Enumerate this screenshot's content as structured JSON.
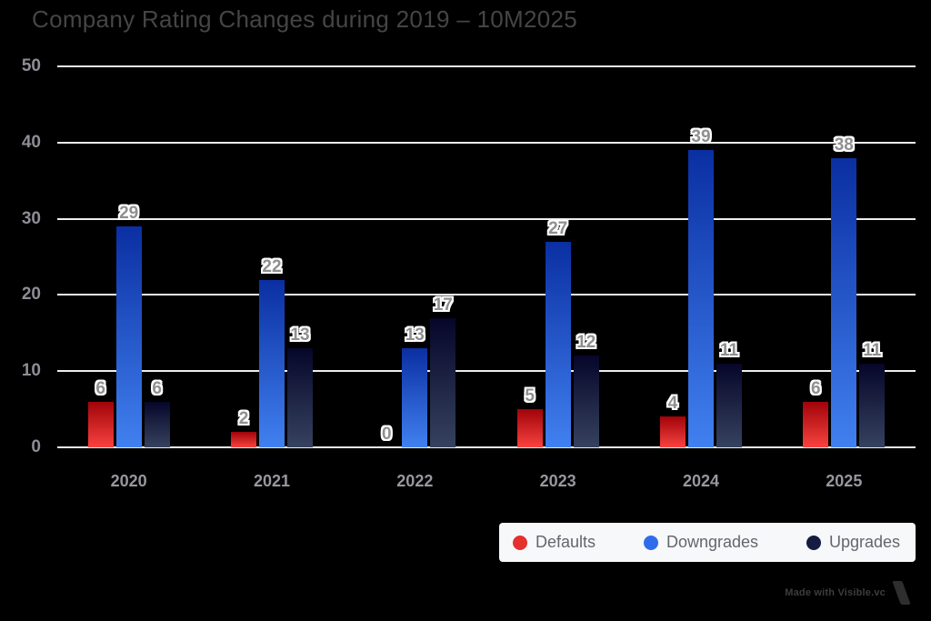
{
  "title": "Company Rating Changes during 2019 – 10M2025",
  "chart_data": {
    "type": "bar",
    "title": "Company Rating Changes during 2019 – 10M2025",
    "categories": [
      "2020",
      "2021",
      "2022",
      "2023",
      "2024",
      "2025"
    ],
    "series": [
      {
        "name": "Defaults",
        "values": [
          6,
          2,
          0,
          5,
          4,
          6
        ],
        "color_top": "#a00309",
        "color_bottom": "#f8423f",
        "legend_color": "#e5302e"
      },
      {
        "name": "Downgrades",
        "values": [
          29,
          22,
          13,
          27,
          39,
          38
        ],
        "color_top": "#0a2fa2",
        "color_bottom": "#4180f0",
        "legend_color": "#2f6ceb"
      },
      {
        "name": "Upgrades",
        "values": [
          6,
          13,
          17,
          12,
          11,
          11
        ],
        "color_top": "#06062a",
        "color_bottom": "#36425f",
        "legend_color": "#141d41"
      }
    ],
    "xlabel": "",
    "ylabel": "",
    "ylim": [
      0,
      50
    ],
    "yticks": [
      0,
      10,
      20,
      30,
      40,
      50
    ],
    "grid": "horizontal",
    "show_value_labels": true,
    "legend_position": "bottom-right",
    "background_color": "#000000",
    "gridline_color": "#ededed",
    "label_color": "#8f8f8f"
  },
  "credit": {
    "text": "Made with Visible.vc"
  }
}
